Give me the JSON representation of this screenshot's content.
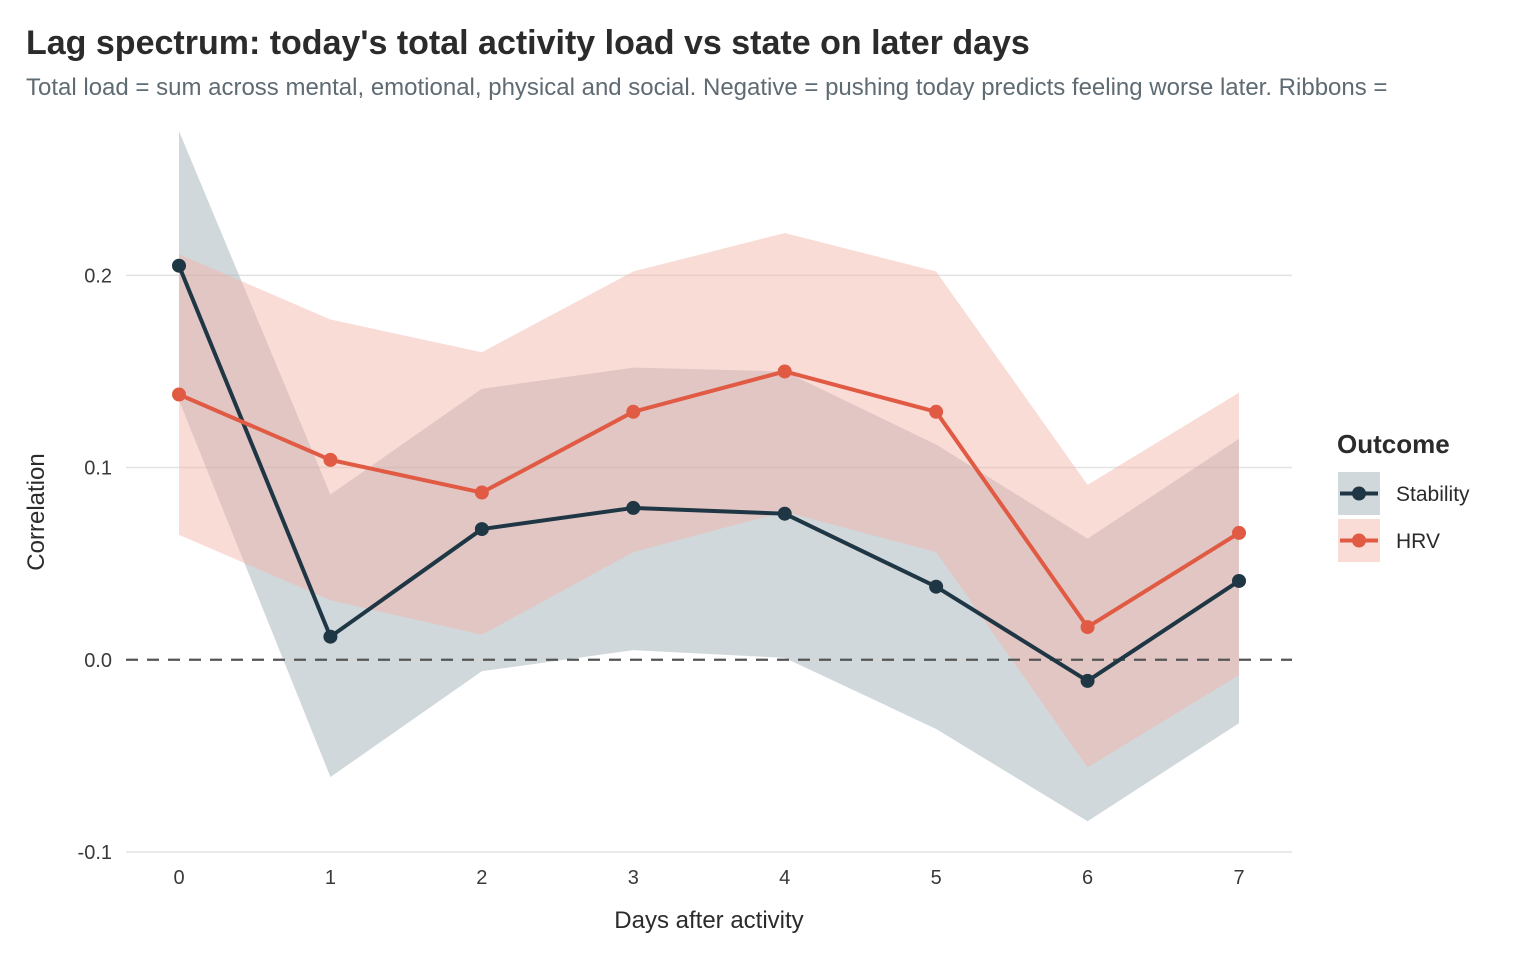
{
  "title": "Lag spectrum: today's total activity load vs state on later days",
  "subtitle": "Total load = sum across mental, emotional, physical and social. Negative = pushing today predicts feeling worse later. Ribbons =",
  "chart_data": {
    "type": "line",
    "x": [
      0,
      1,
      2,
      3,
      4,
      5,
      6,
      7
    ],
    "xlabel": "Days after activity",
    "ylabel": "Correlation",
    "xlim": [
      -0.35,
      7.35
    ],
    "ylim": [
      -0.1,
      0.26
    ],
    "yticks": [
      -0.1,
      0.0,
      0.1,
      0.2
    ],
    "ytick_labels": [
      "-0.1",
      "0.0",
      "0.1",
      "0.2"
    ],
    "xtick_labels": [
      "0",
      "1",
      "2",
      "3",
      "4",
      "5",
      "6",
      "7"
    ],
    "reference_line": {
      "y": 0.0,
      "style": "dashed"
    },
    "grid": true,
    "legend": {
      "title": "Outcome",
      "position": "right"
    },
    "series": [
      {
        "name": "Stability",
        "color": "#1f3644",
        "ribbon_color": "#9aa9b0",
        "values": [
          0.205,
          0.012,
          0.068,
          0.079,
          0.076,
          0.038,
          -0.011,
          0.041
        ],
        "lower": [
          0.135,
          -0.061,
          -0.006,
          0.005,
          0.001,
          -0.036,
          -0.084,
          -0.033
        ],
        "upper": [
          0.275,
          0.086,
          0.141,
          0.152,
          0.15,
          0.112,
          0.063,
          0.115
        ]
      },
      {
        "name": "HRV",
        "color": "#e05a44",
        "ribbon_color": "#f3b2a6",
        "values": [
          0.138,
          0.104,
          0.087,
          0.129,
          0.15,
          0.129,
          0.017,
          0.066
        ],
        "lower": [
          0.065,
          0.031,
          0.013,
          0.056,
          0.077,
          0.056,
          -0.056,
          -0.008
        ],
        "upper": [
          0.211,
          0.177,
          0.16,
          0.202,
          0.222,
          0.202,
          0.091,
          0.139
        ]
      }
    ]
  }
}
